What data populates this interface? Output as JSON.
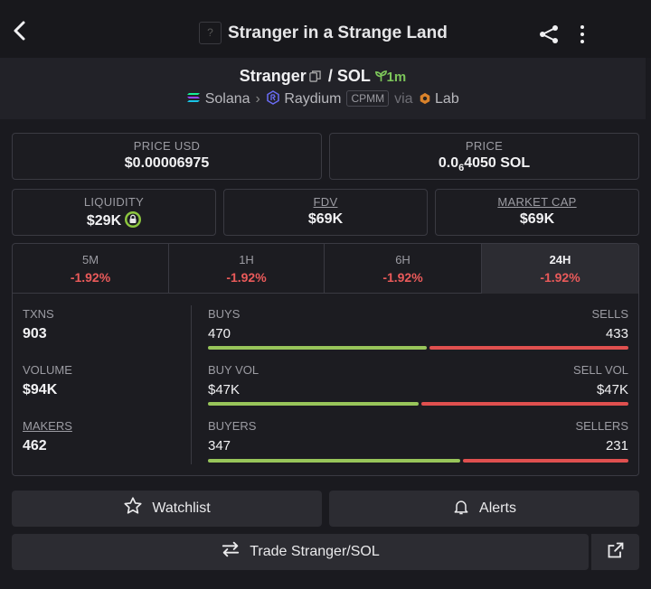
{
  "header": {
    "title": "Stranger in a Strange Land",
    "token_placeholder": "?",
    "icons": [
      "back-arrow-icon",
      "share-icon",
      "more-vertical-icon"
    ]
  },
  "pair": {
    "base": "Stranger",
    "separator": "/",
    "quote": "SOL",
    "age": "1m",
    "chain": "Solana",
    "dex": "Raydium",
    "dex_type": "CPMM",
    "via": "via",
    "launchpad": "Lab"
  },
  "price_usd": {
    "label": "PRICE USD",
    "value": "$0.00006975"
  },
  "price": {
    "label": "PRICE",
    "value_prefix": "0.0",
    "value_sub": "6",
    "value_suffix": "4050 SOL"
  },
  "liquidity": {
    "label": "LIQUIDITY",
    "value": "$29K"
  },
  "fdv": {
    "label": "FDV",
    "value": "$69K"
  },
  "market_cap": {
    "label": "MARKET CAP",
    "value": "$69K"
  },
  "tabs": [
    {
      "label": "5M",
      "change": "-1.92%"
    },
    {
      "label": "1H",
      "change": "-1.92%"
    },
    {
      "label": "6H",
      "change": "-1.92%"
    },
    {
      "label": "24H",
      "change": "-1.92%",
      "active": true
    }
  ],
  "stats": {
    "txns": {
      "label": "TXNS",
      "value": "903"
    },
    "volume": {
      "label": "VOLUME",
      "value": "$94K"
    },
    "makers": {
      "label": "MAKERS",
      "value": "462"
    },
    "buys": {
      "left_label": "BUYS",
      "right_label": "SELLS",
      "left_value": "470",
      "right_value": "433",
      "buy_fraction": 0.52
    },
    "buy_vol": {
      "left_label": "BUY VOL",
      "right_label": "SELL VOL",
      "left_value": "$47K",
      "right_value": "$47K",
      "buy_fraction": 0.5
    },
    "buyers": {
      "left_label": "BUYERS",
      "right_label": "SELLERS",
      "left_value": "347",
      "right_value": "231",
      "buy_fraction": 0.6
    }
  },
  "buttons": {
    "watchlist": "Watchlist",
    "alerts": "Alerts",
    "trade": "Trade Stranger/SOL"
  },
  "colors": {
    "positive": "#98c55a",
    "negative": "#e0504f",
    "accent_green": "#7cc55a"
  }
}
